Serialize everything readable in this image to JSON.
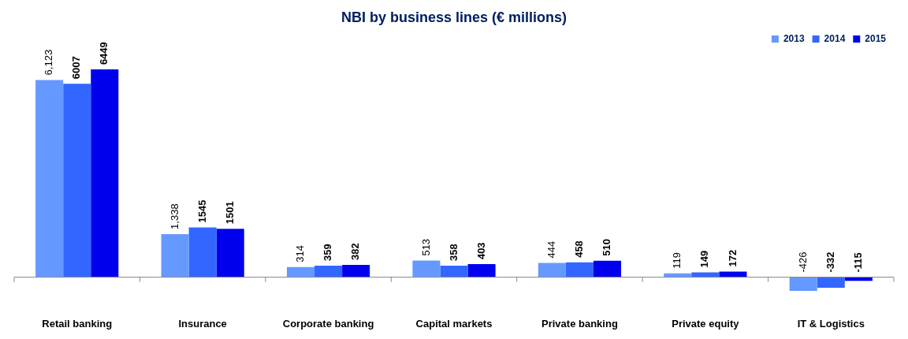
{
  "chart_data": {
    "type": "bar",
    "title": "NBI by business lines (€ millions)",
    "categories": [
      "Retail banking",
      "Insurance",
      "Corporate banking",
      "Capital markets",
      "Private banking",
      "Private equity",
      "IT & Logistics"
    ],
    "series": [
      {
        "name": "2013",
        "color": "#6699ff",
        "values": [
          6123,
          1338,
          314,
          513,
          444,
          119,
          -426
        ],
        "value_labels": [
          "6,123",
          "1,338",
          "314",
          "513",
          "444",
          "119",
          "-426"
        ]
      },
      {
        "name": "2014",
        "color": "#3366ff",
        "values": [
          6007,
          1545,
          359,
          358,
          458,
          149,
          -332
        ],
        "value_labels": [
          "6007",
          "1545",
          "359",
          "358",
          "458",
          "149",
          "-332"
        ]
      },
      {
        "name": "2015",
        "color": "#0000ee",
        "values": [
          6449,
          1501,
          382,
          403,
          510,
          172,
          -115
        ],
        "value_labels": [
          "6449",
          "1501",
          "382",
          "403",
          "510",
          "172",
          "-115"
        ]
      }
    ],
    "legend": "top right",
    "grid": false
  }
}
